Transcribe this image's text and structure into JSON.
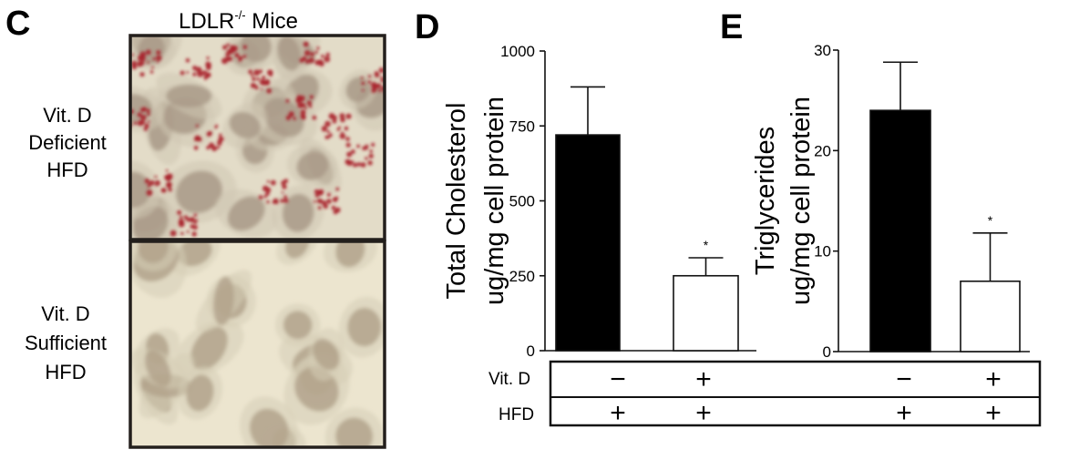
{
  "panels": {
    "c": {
      "letter": "C",
      "title_main": "LDLR",
      "title_sup": "-/-",
      "title_tail": " Mice",
      "rows": [
        {
          "lines": [
            "Vit. D",
            "Deficient",
            "HFD"
          ]
        },
        {
          "lines": [
            "Vit. D",
            "Sufficient",
            "HFD"
          ]
        }
      ]
    },
    "d": {
      "letter": "D"
    },
    "e": {
      "letter": "E"
    }
  },
  "chart_data": [
    {
      "type": "bar",
      "panel": "D",
      "ylabel": [
        "Total Cholesterol",
        "ug/mg cell protein"
      ],
      "ylim": [
        0,
        1000
      ],
      "yticks": [
        0,
        250,
        500,
        750,
        1000
      ],
      "ytick_labels": [
        "0",
        "250",
        "500",
        "750",
        "1000"
      ],
      "categories": [
        "Vit. D deficient HFD",
        "Vit. D sufficient HFD"
      ],
      "values": [
        720,
        250
      ],
      "errors": [
        160,
        60
      ],
      "bar_colors": [
        "#000000",
        "#ffffff"
      ],
      "annotations": [
        "",
        "*"
      ]
    },
    {
      "type": "bar",
      "panel": "E",
      "ylabel": [
        "Triglycerides",
        "ug/mg cell protein"
      ],
      "ylim": [
        0,
        30
      ],
      "yticks": [
        0,
        10,
        20,
        30
      ],
      "ytick_labels": [
        "0",
        "10",
        "20",
        "30"
      ],
      "categories": [
        "Vit. D deficient HFD",
        "Vit. D sufficient HFD"
      ],
      "values": [
        24,
        7
      ],
      "errors": [
        4.8,
        4.8
      ],
      "bar_colors": [
        "#000000",
        "#ffffff"
      ],
      "annotations": [
        "",
        "*"
      ]
    }
  ],
  "condition_table": {
    "rows": [
      {
        "label": "Vit. D",
        "marks": [
          "−",
          "+",
          "−",
          "+"
        ]
      },
      {
        "label": "HFD",
        "marks": [
          "+",
          "+",
          "+",
          "+"
        ]
      }
    ]
  },
  "colors": {
    "stain_red": "#a8202a",
    "cell_fill": "#b9a996",
    "background_cream": "#ece5cf"
  }
}
